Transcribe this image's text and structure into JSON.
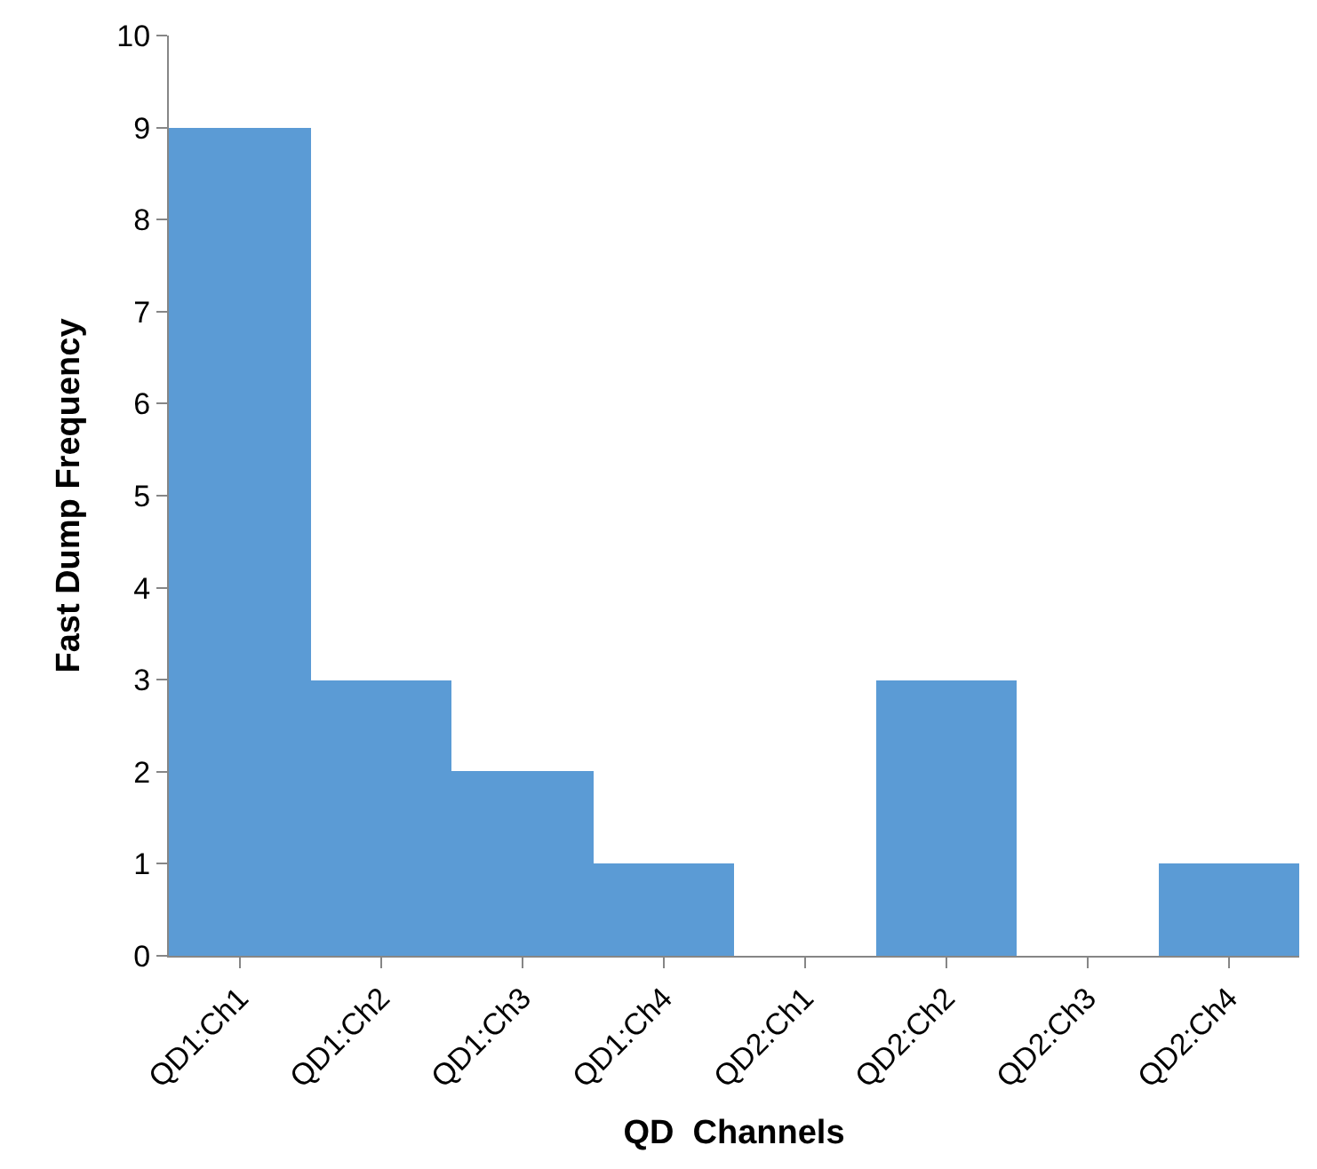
{
  "chart_data": {
    "type": "bar",
    "xlabel": "QD  Channels",
    "ylabel": "Fast Dump Frequency",
    "categories": [
      "QD1:Ch1",
      "QD1:Ch2",
      "QD1:Ch3",
      "QD1:Ch4",
      "QD2:Ch1",
      "QD2:Ch2",
      "QD2:Ch3",
      "QD2:Ch4"
    ],
    "values": [
      9,
      3,
      2,
      1,
      0,
      3,
      0,
      1
    ],
    "color": "#5b9bd5",
    "ylim": [
      0,
      10
    ],
    "yticks": [
      0,
      1,
      2,
      3,
      4,
      5,
      6,
      7,
      8,
      9,
      10
    ]
  }
}
